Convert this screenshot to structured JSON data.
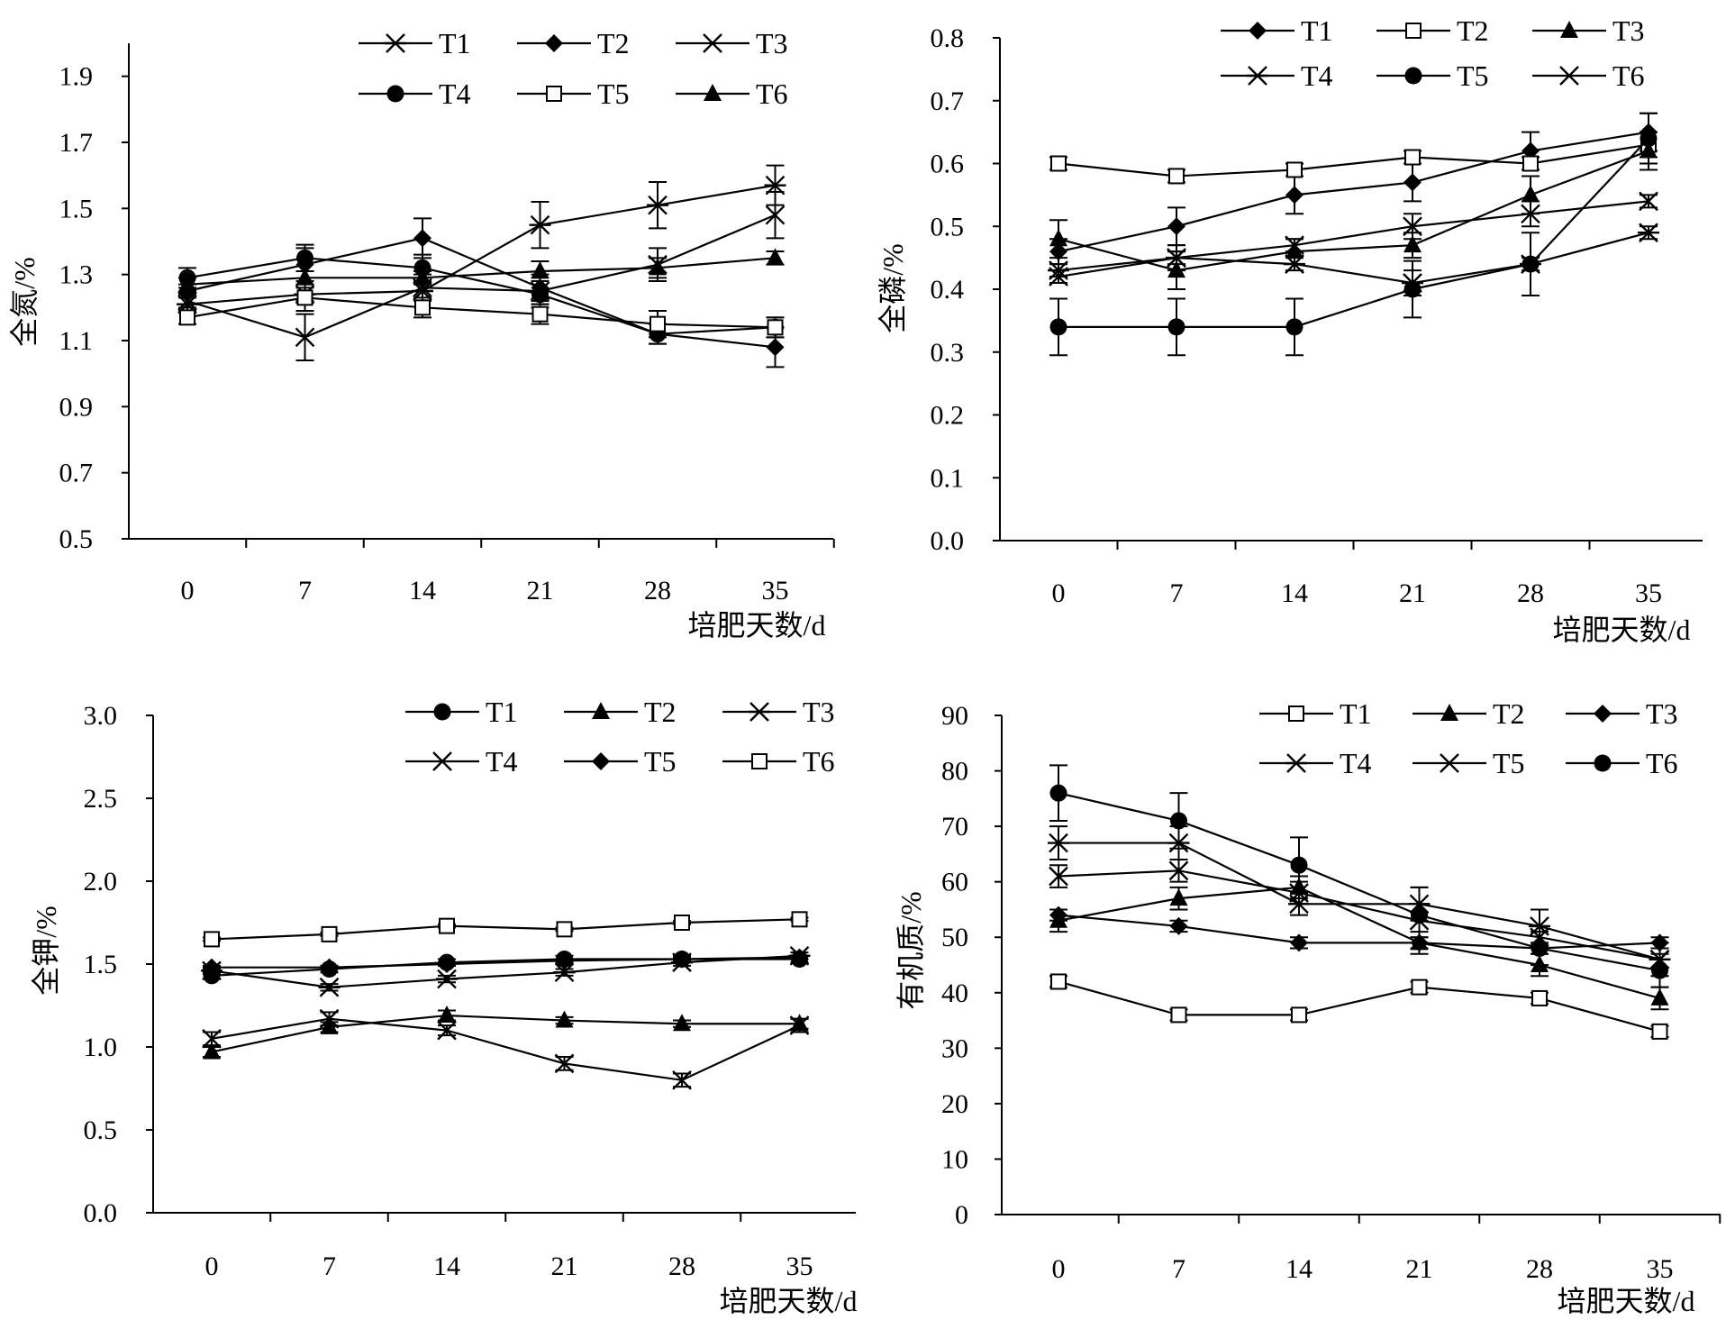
{
  "chart_data": [
    {
      "type": "line",
      "ylabel": "全氮/%",
      "xlabel": "培肥天数/d",
      "x": [
        0,
        7,
        14,
        21,
        28,
        35
      ],
      "yticks": [
        "0.5",
        "0.7",
        "0.9",
        "1.1",
        "1.3",
        "1.5",
        "1.7",
        "1.9"
      ],
      "ylim": [
        0.5,
        2.0
      ],
      "legend_position": "top",
      "series": [
        {
          "name": "T1",
          "marker": "asterisk",
          "values": [
            1.21,
            1.24,
            1.25,
            1.45,
            1.51,
            1.57
          ],
          "err": [
            0.02,
            0.02,
            0.03,
            0.07,
            0.07,
            0.06
          ]
        },
        {
          "name": "T2",
          "marker": "diamond",
          "values": [
            1.25,
            1.33,
            1.41,
            1.26,
            1.12,
            1.08
          ],
          "err": [
            0.02,
            0.05,
            0.06,
            0.04,
            0.03,
            0.06
          ]
        },
        {
          "name": "T3",
          "marker": "x",
          "values": [
            1.22,
            1.11,
            1.26,
            1.25,
            1.33,
            1.48
          ],
          "err": [
            0.02,
            0.07,
            0.04,
            0.04,
            0.05,
            0.07
          ]
        },
        {
          "name": "T4",
          "marker": "circle",
          "values": [
            1.29,
            1.35,
            1.32,
            1.24,
            1.12,
            1.14
          ],
          "err": [
            0.03,
            0.04,
            0.04,
            0.04,
            0.03,
            0.03
          ]
        },
        {
          "name": "T5",
          "marker": "square",
          "values": [
            1.17,
            1.23,
            1.2,
            1.18,
            1.15,
            1.14
          ],
          "err": [
            0.02,
            0.04,
            0.03,
            0.03,
            0.04,
            0.03
          ]
        },
        {
          "name": "T6",
          "marker": "triangle",
          "values": [
            1.27,
            1.29,
            1.29,
            1.31,
            1.32,
            1.35
          ],
          "err": [
            0.02,
            0.02,
            0.02,
            0.03,
            0.03,
            0.02
          ]
        }
      ]
    },
    {
      "type": "line",
      "ylabel": "全磷/%",
      "xlabel": "培肥天数/d",
      "x": [
        0,
        7,
        14,
        21,
        28,
        35
      ],
      "yticks": [
        "0.0",
        "0.1",
        "0.2",
        "0.3",
        "0.4",
        "0.5",
        "0.6",
        "0.7",
        "0.8"
      ],
      "ylim": [
        0.0,
        0.8
      ],
      "legend_position": "top",
      "series": [
        {
          "name": "T1",
          "marker": "diamond",
          "values": [
            0.46,
            0.5,
            0.55,
            0.57,
            0.62,
            0.65
          ],
          "err": [
            0.02,
            0.03,
            0.03,
            0.03,
            0.03,
            0.03
          ]
        },
        {
          "name": "T2",
          "marker": "square",
          "values": [
            0.6,
            0.58,
            0.59,
            0.61,
            0.6,
            0.63
          ],
          "err": [
            0.01,
            0.01,
            0.01,
            0.01,
            0.01,
            0.02
          ]
        },
        {
          "name": "T3",
          "marker": "triangle",
          "values": [
            0.48,
            0.43,
            0.46,
            0.47,
            0.55,
            0.62
          ],
          "err": [
            0.03,
            0.03,
            0.02,
            0.02,
            0.03,
            0.03
          ]
        },
        {
          "name": "T4",
          "marker": "asterisk",
          "values": [
            0.43,
            0.45,
            0.44,
            0.41,
            0.44,
            0.49
          ],
          "err": [
            0.01,
            0.02,
            0.01,
            0.02,
            0.05,
            0.01
          ]
        },
        {
          "name": "T5",
          "marker": "circle",
          "values": [
            0.34,
            0.34,
            0.34,
            0.4,
            0.44,
            0.64
          ],
          "err": [
            0.045,
            0.045,
            0.045,
            0.045,
            0.01,
            0.04
          ]
        },
        {
          "name": "T6",
          "marker": "x",
          "values": [
            0.42,
            0.45,
            0.47,
            0.5,
            0.52,
            0.54
          ],
          "err": [
            0.01,
            0.01,
            0.01,
            0.02,
            0.02,
            0.01
          ]
        }
      ]
    },
    {
      "type": "line",
      "ylabel": "全钾/%",
      "xlabel": "培肥天数/d",
      "x": [
        0,
        7,
        14,
        21,
        28,
        35
      ],
      "yticks": [
        "0.0",
        "0.5",
        "1.0",
        "1.5",
        "2.0",
        "2.5",
        "3.0"
      ],
      "ylim": [
        0.0,
        3.0
      ],
      "legend_position": "top",
      "series": [
        {
          "name": "T1",
          "marker": "circle",
          "values": [
            1.43,
            1.47,
            1.51,
            1.53,
            1.53,
            1.53
          ],
          "err": [
            0.02,
            0.02,
            0.02,
            0.02,
            0.02,
            0.02
          ]
        },
        {
          "name": "T2",
          "marker": "triangle",
          "values": [
            0.97,
            1.12,
            1.19,
            1.16,
            1.14,
            1.14
          ],
          "err": [
            0.03,
            0.03,
            0.03,
            0.02,
            0.02,
            0.03
          ]
        },
        {
          "name": "T3",
          "marker": "asterisk",
          "values": [
            1.46,
            1.36,
            1.41,
            1.45,
            1.51,
            1.55
          ],
          "err": [
            0.02,
            0.02,
            0.02,
            0.02,
            0.02,
            0.02
          ]
        },
        {
          "name": "T4",
          "marker": "x",
          "values": [
            1.05,
            1.17,
            1.1,
            0.9,
            0.8,
            1.13
          ],
          "err": [
            0.04,
            0.04,
            0.03,
            0.04,
            0.04,
            0.04
          ]
        },
        {
          "name": "T5",
          "marker": "diamond",
          "values": [
            1.48,
            1.48,
            1.5,
            1.52,
            1.53,
            1.54
          ],
          "err": [
            0.01,
            0.01,
            0.01,
            0.01,
            0.01,
            0.01
          ]
        },
        {
          "name": "T6",
          "marker": "square",
          "values": [
            1.65,
            1.68,
            1.73,
            1.71,
            1.75,
            1.77
          ],
          "err": [
            0.01,
            0.01,
            0.01,
            0.01,
            0.01,
            0.01
          ]
        }
      ]
    },
    {
      "type": "line",
      "ylabel": "有机质/%",
      "xlabel": "培肥天数/d",
      "x": [
        0,
        7,
        14,
        21,
        28,
        35
      ],
      "yticks": [
        "0",
        "10",
        "20",
        "30",
        "40",
        "50",
        "60",
        "70",
        "80",
        "90"
      ],
      "ylim": [
        0,
        90
      ],
      "legend_position": "top",
      "series": [
        {
          "name": "T1",
          "marker": "square",
          "values": [
            42,
            36,
            36,
            41,
            39,
            33
          ],
          "err": [
            1,
            1,
            1,
            1,
            1,
            1
          ]
        },
        {
          "name": "T2",
          "marker": "triangle",
          "values": [
            53,
            57,
            59,
            49,
            45,
            39
          ],
          "err": [
            2,
            2,
            2,
            2,
            2,
            2
          ]
        },
        {
          "name": "T3",
          "marker": "diamond",
          "values": [
            54,
            52,
            49,
            49,
            48,
            49
          ],
          "err": [
            1,
            1,
            1,
            1,
            1,
            1
          ]
        },
        {
          "name": "T4",
          "marker": "asterisk",
          "values": [
            67,
            67,
            56,
            56,
            52,
            46
          ],
          "err": [
            3,
            3,
            2,
            3,
            3,
            3
          ]
        },
        {
          "name": "T5",
          "marker": "x",
          "values": [
            61,
            62,
            58,
            53,
            50,
            46
          ],
          "err": [
            2,
            2,
            2,
            3,
            2,
            3
          ]
        },
        {
          "name": "T6",
          "marker": "circle",
          "values": [
            76,
            71,
            63,
            54,
            48,
            44
          ],
          "err": [
            5,
            5,
            5,
            5,
            3,
            3
          ]
        }
      ]
    }
  ]
}
